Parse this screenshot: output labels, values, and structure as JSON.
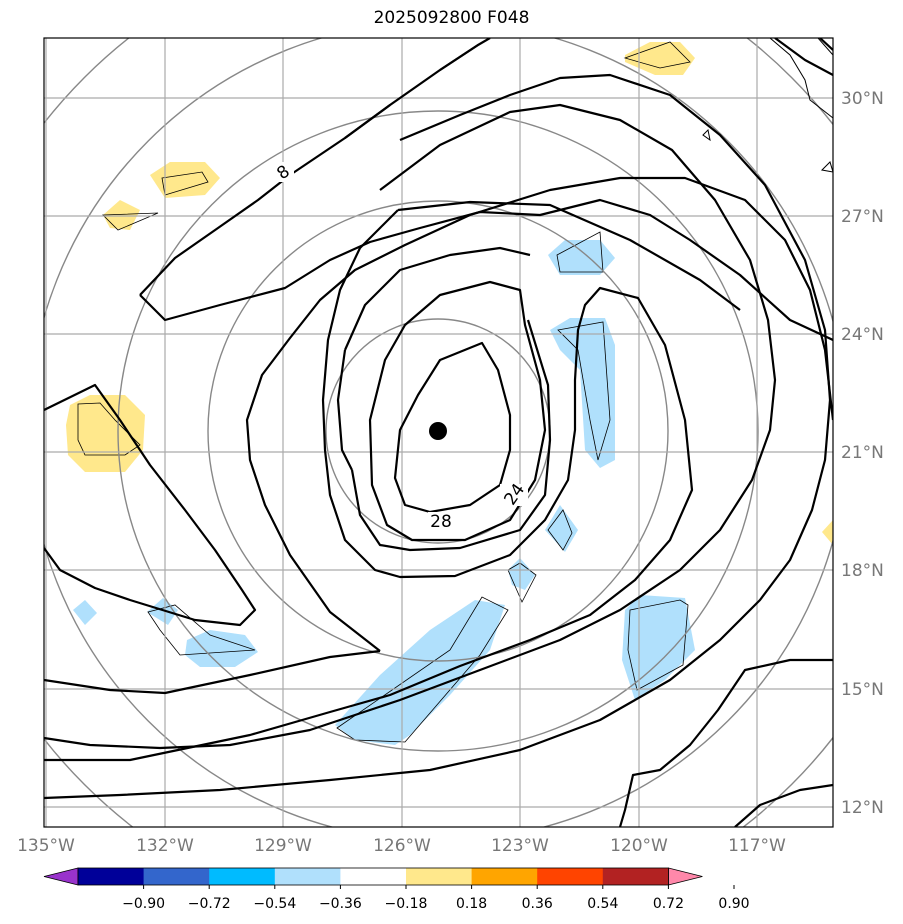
{
  "title": "2025092800 F048",
  "lon_ticks": [
    "135°W",
    "132°W",
    "129°W",
    "126°W",
    "123°W",
    "120°W",
    "117°W"
  ],
  "lat_ticks": [
    "30°N",
    "27°N",
    "24°N",
    "21°N",
    "18°N",
    "15°N",
    "12°N"
  ],
  "contour_labels": {
    "outer": "8",
    "mid": "24",
    "inner": "28"
  },
  "colorbar": {
    "colors": [
      "#9933cc",
      "#000099",
      "#3366cc",
      "#00bbff",
      "#b0e0fc",
      "#ffffff",
      "#ffe88c",
      "#ffa500",
      "#ff4400",
      "#b22222",
      "#ff88aa"
    ],
    "labels": [
      "−0.90",
      "−0.72",
      "−0.54",
      "−0.36",
      "−0.18",
      "0.18",
      "0.36",
      "0.54",
      "0.72",
      "0.90"
    ]
  },
  "center_marker": {
    "lon": "125.1°W",
    "lat": "21.5°N"
  }
}
